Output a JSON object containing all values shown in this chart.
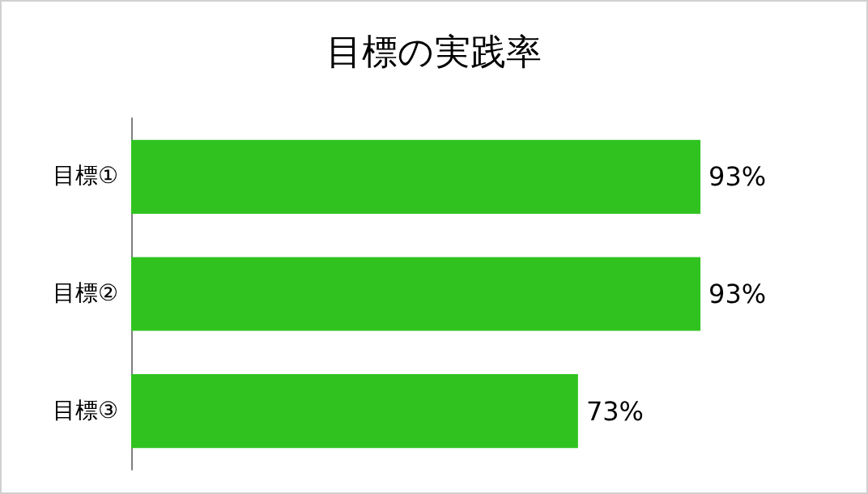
{
  "chart_data": {
    "type": "bar",
    "orientation": "horizontal",
    "title": "目標の実践率",
    "categories": [
      "目標①",
      "目標②",
      "目標③"
    ],
    "values": [
      93,
      93,
      73
    ],
    "value_labels": [
      "93%",
      "93%",
      "73%"
    ],
    "color": "#30c320"
  }
}
